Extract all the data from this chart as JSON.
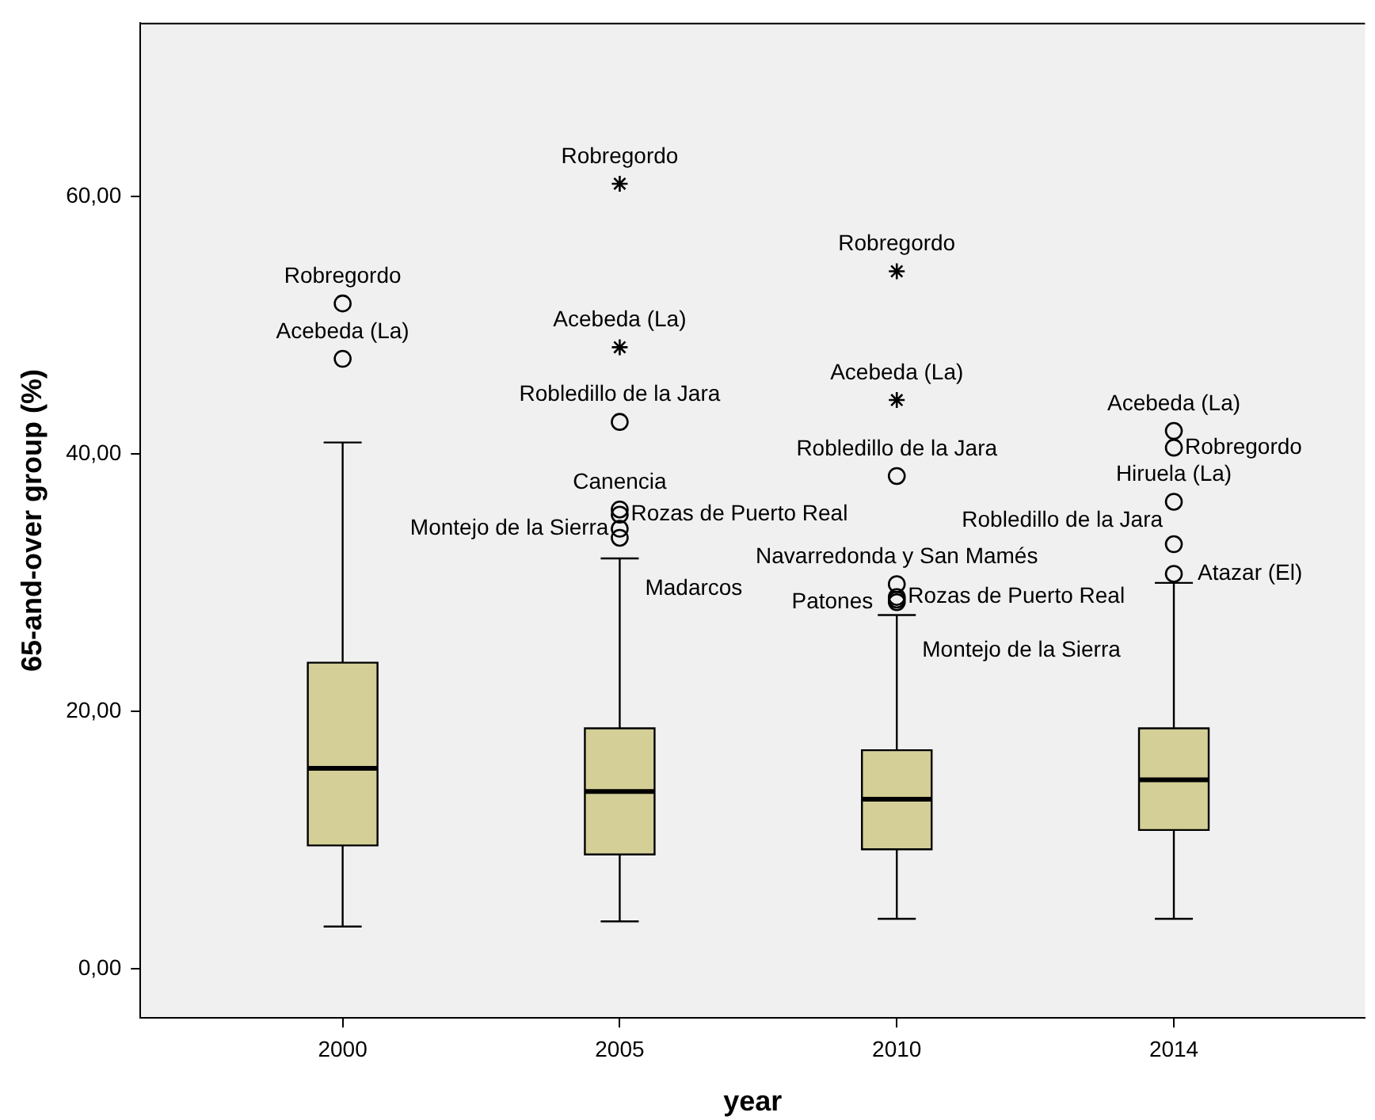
{
  "chart_data": {
    "type": "box",
    "xlabel": "year",
    "ylabel": "65-and-over group (%)",
    "categories": [
      "2000",
      "2005",
      "2010",
      "2014"
    ],
    "color": "#d3cf97",
    "boxes": [
      {
        "low": 3.3,
        "q1": 9.6,
        "median": 15.6,
        "q3": 23.8,
        "high": 40.9,
        "outliers": [
          51.7,
          47.4
        ]
      },
      {
        "low": 3.7,
        "q1": 8.9,
        "median": 13.8,
        "q3": 18.7,
        "high": 31.9,
        "outliers": [
          61.0,
          48.3,
          42.5,
          35.7,
          35.3,
          34.2,
          33.5
        ]
      },
      {
        "low": 3.9,
        "q1": 9.3,
        "median": 13.2,
        "q3": 17.0,
        "high": 27.5,
        "outliers": [
          54.2,
          44.2,
          38.3,
          29.9,
          28.9,
          28.7,
          28.5
        ]
      },
      {
        "low": 3.9,
        "q1": 10.8,
        "median": 14.7,
        "q3": 18.7,
        "high": 30.0,
        "outliers": [
          41.8,
          40.5,
          36.3,
          33.0,
          30.7
        ]
      }
    ],
    "ylim": [
      -3.8,
      73.5
    ],
    "yticks": [
      {
        "value": 0,
        "label": "0,00"
      },
      {
        "value": 20,
        "label": "20,00"
      },
      {
        "value": 40,
        "label": "40,00"
      },
      {
        "value": 60,
        "label": "60,00"
      }
    ],
    "annotations": [
      "Robregordo",
      "Acebeda (La)",
      "Robregordo",
      "Acebeda (La)",
      "Robledillo de la Jara",
      "Canencia",
      "Rozas de Puerto Real",
      "Montejo de la Sierra",
      "Madarcos",
      "Robregordo",
      "Acebeda (La)",
      "Robledillo de la Jara",
      "Navarredonda y San Mamés",
      "Rozas de Puerto Real",
      "Montejo de la Sierra",
      "Patones",
      "Acebeda (La)",
      "Robregordo",
      "Hiruela (La)",
      "Robledillo de la Jara",
      "Atazar (El)"
    ]
  }
}
